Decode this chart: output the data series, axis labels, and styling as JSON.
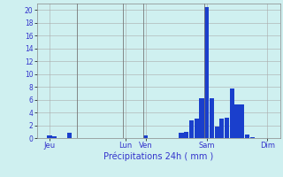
{
  "title": "Précipitations 24h ( mm )",
  "background_color": "#cff0f0",
  "bar_color": "#1a3fcc",
  "grid_color": "#aaaaaa",
  "text_color": "#3333cc",
  "ylim": [
    0,
    21
  ],
  "yticks": [
    0,
    2,
    4,
    6,
    8,
    10,
    12,
    14,
    16,
    18,
    20
  ],
  "day_labels": [
    "Jeu",
    "Lun",
    "Ven",
    "Sam",
    "Dim"
  ],
  "day_positions": [
    2,
    17,
    21,
    33,
    45
  ],
  "num_bars": 48,
  "bar_values": [
    0,
    0,
    0.4,
    0.3,
    0,
    0,
    0.8,
    0,
    0,
    0,
    0,
    0,
    0,
    0,
    0,
    0,
    0,
    0,
    0,
    0,
    0,
    0.4,
    0,
    0,
    0,
    0,
    0,
    0,
    0.8,
    1.0,
    2.8,
    3.0,
    6.2,
    20.5,
    6.2,
    1.8,
    3.0,
    3.2,
    7.8,
    5.2,
    5.2,
    0.6,
    0.2,
    0,
    0,
    0,
    0,
    0
  ],
  "vline_positions": [
    8,
    17,
    21,
    33
  ],
  "figsize": [
    3.2,
    2.0
  ],
  "dpi": 100
}
